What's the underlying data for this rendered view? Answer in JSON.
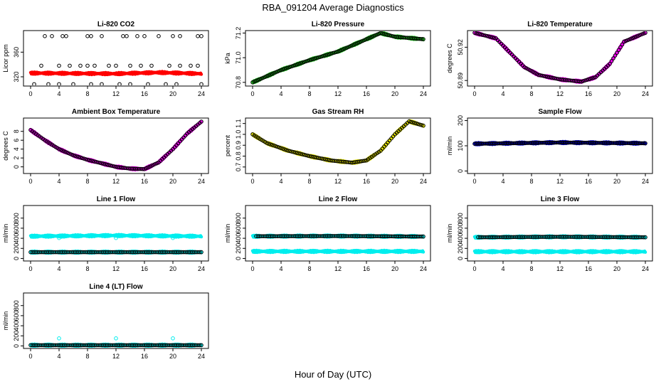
{
  "figure": {
    "title": "RBA_091204  Average Diagnostics",
    "xlabel": "Hour of Day (UTC)"
  },
  "chart_data": [
    {
      "type": "scatter",
      "title": "Li-820 CO2",
      "ylabel": "Licor ppm",
      "xlim": [
        0,
        24
      ],
      "xticks": [
        0,
        4,
        8,
        12,
        16,
        20,
        24
      ],
      "ylim": [
        305,
        395
      ],
      "yticks": [
        320,
        360
      ],
      "series": [
        {
          "name": "main",
          "color": "#ff0000",
          "marker": "filled",
          "x_range": [
            0,
            24
          ],
          "curve": [
            [
              0,
              326
            ],
            [
              12,
              325
            ],
            [
              18,
              327
            ],
            [
              24,
              325
            ]
          ]
        },
        {
          "name": "outliers-high",
          "color": "#000000",
          "marker": "open",
          "x": [
            2,
            3,
            4.5,
            5,
            8,
            8.5,
            10,
            13,
            13.5,
            15,
            16,
            18,
            20,
            21,
            23.5,
            24
          ],
          "y": [
            386,
            386,
            386,
            386,
            386,
            386,
            386,
            386,
            386,
            386,
            386,
            386,
            386,
            386,
            386,
            386
          ]
        },
        {
          "name": "outliers-mid",
          "color": "#000000",
          "marker": "open",
          "x": [
            1.5,
            4,
            5.5,
            7,
            8,
            9,
            11,
            12,
            14,
            15.5,
            17,
            19.5,
            21,
            22.5,
            23.5
          ],
          "y": [
            338,
            338,
            338,
            338,
            338,
            338,
            338,
            338,
            338,
            338,
            338,
            338,
            338,
            338,
            338
          ]
        },
        {
          "name": "outliers-low",
          "color": "#000000",
          "marker": "open",
          "x": [
            0.5,
            2.5,
            4,
            6,
            8.5,
            10,
            12.5,
            14,
            16.5,
            19,
            20.5,
            24
          ],
          "y": [
            308,
            308,
            308,
            308,
            308,
            308,
            308,
            308,
            308,
            308,
            308,
            308
          ]
        }
      ]
    },
    {
      "type": "scatter",
      "title": "Li-820 Pressure",
      "ylabel": "kPa",
      "xlim": [
        0,
        24
      ],
      "xticks": [
        0,
        4,
        8,
        12,
        16,
        20,
        24
      ],
      "ylim": [
        70.77,
        71.22
      ],
      "yticks": [
        70.8,
        71.0,
        71.2
      ],
      "ytick_labels": [
        "70.8",
        "71.0",
        "71.2"
      ],
      "series": [
        {
          "name": "main",
          "color": "#22cc22",
          "marker": "filled",
          "x_range": [
            0,
            24
          ],
          "curve": [
            [
              0,
              70.8
            ],
            [
              4,
              70.9
            ],
            [
              8,
              70.98
            ],
            [
              12,
              71.05
            ],
            [
              16,
              71.15
            ],
            [
              18,
              71.2
            ],
            [
              20,
              71.17
            ],
            [
              24,
              71.15
            ]
          ]
        },
        {
          "name": "hourly",
          "color": "#000000",
          "marker": "open",
          "x_range": [
            0,
            24
          ],
          "curve": [
            [
              0,
              70.8
            ],
            [
              4,
              70.9
            ],
            [
              8,
              70.98
            ],
            [
              12,
              71.05
            ],
            [
              16,
              71.15
            ],
            [
              18,
              71.2
            ],
            [
              20,
              71.17
            ],
            [
              24,
              71.15
            ]
          ]
        }
      ]
    },
    {
      "type": "scatter",
      "title": "Li-820 Temperature",
      "ylabel": "degrees C",
      "xlim": [
        0,
        24
      ],
      "xticks": [
        0,
        4,
        8,
        12,
        16,
        20,
        24
      ],
      "ylim": [
        50.885,
        50.935
      ],
      "yticks": [
        50.89,
        50.92
      ],
      "ytick_labels": [
        "50.89",
        "50.92"
      ],
      "series": [
        {
          "name": "main",
          "color": "#ee00ee",
          "marker": "filled",
          "x_range": [
            0,
            24
          ],
          "curve": [
            [
              0,
              50.933
            ],
            [
              3,
              50.928
            ],
            [
              5,
              50.915
            ],
            [
              7,
              50.902
            ],
            [
              9,
              50.895
            ],
            [
              12,
              50.891
            ],
            [
              15,
              50.889
            ],
            [
              17,
              50.893
            ],
            [
              19,
              50.905
            ],
            [
              21,
              50.925
            ],
            [
              24,
              50.933
            ]
          ]
        },
        {
          "name": "hourly",
          "color": "#000000",
          "marker": "open",
          "x_range": [
            0,
            24
          ],
          "curve": [
            [
              0,
              50.933
            ],
            [
              3,
              50.928
            ],
            [
              5,
              50.915
            ],
            [
              7,
              50.902
            ],
            [
              9,
              50.895
            ],
            [
              12,
              50.891
            ],
            [
              15,
              50.889
            ],
            [
              17,
              50.893
            ],
            [
              19,
              50.905
            ],
            [
              21,
              50.925
            ],
            [
              24,
              50.933
            ]
          ]
        }
      ]
    },
    {
      "type": "scatter",
      "title": "Ambient Box Temperature",
      "ylabel": "degrees C",
      "xlim": [
        0,
        24
      ],
      "xticks": [
        0,
        4,
        8,
        12,
        16,
        20,
        24
      ],
      "ylim": [
        -1.5,
        11
      ],
      "yticks": [
        0,
        2,
        4,
        6,
        8
      ],
      "series": [
        {
          "name": "main",
          "color": "#ee00ee",
          "marker": "filled",
          "x_range": [
            0,
            24
          ],
          "curve": [
            [
              0,
              8.3
            ],
            [
              2,
              6
            ],
            [
              4,
              4
            ],
            [
              6,
              2.6
            ],
            [
              8,
              1.6
            ],
            [
              10,
              0.8
            ],
            [
              12,
              0
            ],
            [
              14,
              -0.4
            ],
            [
              16,
              -0.5
            ],
            [
              18,
              1
            ],
            [
              20,
              4
            ],
            [
              22,
              7.5
            ],
            [
              24,
              10.2
            ]
          ]
        },
        {
          "name": "hourly",
          "color": "#000000",
          "marker": "open",
          "x_range": [
            0,
            24
          ],
          "curve": [
            [
              0,
              8.3
            ],
            [
              2,
              6
            ],
            [
              4,
              4
            ],
            [
              6,
              2.6
            ],
            [
              8,
              1.6
            ],
            [
              10,
              0.8
            ],
            [
              12,
              0
            ],
            [
              14,
              -0.4
            ],
            [
              16,
              -0.5
            ],
            [
              18,
              1
            ],
            [
              20,
              4
            ],
            [
              22,
              7.5
            ],
            [
              24,
              10.2
            ]
          ]
        }
      ]
    },
    {
      "type": "scatter",
      "title": "Gas Stream RH",
      "ylabel": "percent",
      "xlim": [
        0,
        24
      ],
      "xticks": [
        0,
        4,
        8,
        12,
        16,
        20,
        24
      ],
      "ylim": [
        0.64,
        1.15
      ],
      "yticks": [
        0.7,
        0.8,
        0.9,
        1.0,
        1.1
      ],
      "ytick_labels": [
        "0.7",
        "0.8",
        "0.9",
        "1.0",
        "1.1"
      ],
      "series": [
        {
          "name": "main",
          "color": "#eeee00",
          "marker": "filled",
          "x_range": [
            0,
            24
          ],
          "curve": [
            [
              0,
              1.0
            ],
            [
              2,
              0.92
            ],
            [
              5,
              0.85
            ],
            [
              8,
              0.8
            ],
            [
              11,
              0.76
            ],
            [
              14,
              0.74
            ],
            [
              16,
              0.76
            ],
            [
              18,
              0.85
            ],
            [
              20,
              1.0
            ],
            [
              22,
              1.12
            ],
            [
              24,
              1.08
            ]
          ]
        },
        {
          "name": "hourly",
          "color": "#000000",
          "marker": "open",
          "x_range": [
            0,
            24
          ],
          "curve": [
            [
              0,
              1.0
            ],
            [
              2,
              0.92
            ],
            [
              5,
              0.85
            ],
            [
              8,
              0.8
            ],
            [
              11,
              0.76
            ],
            [
              14,
              0.74
            ],
            [
              16,
              0.76
            ],
            [
              18,
              0.85
            ],
            [
              20,
              1.0
            ],
            [
              22,
              1.12
            ],
            [
              24,
              1.08
            ]
          ]
        }
      ]
    },
    {
      "type": "scatter",
      "title": "Sample Flow",
      "ylabel": "ml/min",
      "xlim": [
        0,
        24
      ],
      "xticks": [
        0,
        4,
        8,
        12,
        16,
        20,
        24
      ],
      "ylim": [
        -10,
        210
      ],
      "yticks": [
        0,
        100,
        200
      ],
      "series": [
        {
          "name": "main",
          "color": "#0000cc",
          "marker": "filled",
          "x_range": [
            0,
            24
          ],
          "curve": [
            [
              0,
              108
            ],
            [
              12,
              113
            ],
            [
              24,
              110
            ]
          ]
        },
        {
          "name": "hourly",
          "color": "#000000",
          "marker": "open",
          "x_range": [
            0,
            24
          ],
          "curve": [
            [
              0,
              108
            ],
            [
              12,
              113
            ],
            [
              24,
              110
            ]
          ]
        }
      ]
    },
    {
      "type": "scatter",
      "title": "Line 1 Flow",
      "ylabel": "ml/min",
      "xlim": [
        0,
        24
      ],
      "xticks": [
        0,
        4,
        8,
        12,
        16,
        20,
        24
      ],
      "ylim": [
        -50,
        1050
      ],
      "yticks": [
        0,
        200,
        400,
        600,
        800
      ],
      "series": [
        {
          "name": "upper",
          "color": "#00eeee",
          "marker": "filled",
          "x_range": [
            0,
            24
          ],
          "curve": [
            [
              0,
              440
            ],
            [
              12,
              455
            ],
            [
              24,
              440
            ]
          ]
        },
        {
          "name": "lower",
          "color": "#00eeee",
          "marker": "filled",
          "x_range": [
            0,
            24
          ],
          "curve": [
            [
              0,
              125
            ],
            [
              24,
              125
            ]
          ]
        },
        {
          "name": "hourly",
          "color": "#000000",
          "marker": "open",
          "x_range": [
            0,
            24
          ],
          "curve": [
            [
              0,
              125
            ],
            [
              24,
              125
            ]
          ]
        },
        {
          "name": "checks",
          "color": "#00eeee",
          "marker": "open",
          "x": [
            4,
            12,
            20
          ],
          "y": [
            405,
            405,
            405
          ]
        }
      ]
    },
    {
      "type": "scatter",
      "title": "Line 2 Flow",
      "ylabel": "ml/min",
      "xlim": [
        0,
        24
      ],
      "xticks": [
        0,
        4,
        8,
        12,
        16,
        20,
        24
      ],
      "ylim": [
        -50,
        1050
      ],
      "yticks": [
        0,
        200,
        400,
        600,
        800
      ],
      "series": [
        {
          "name": "upper",
          "color": "#00eeee",
          "marker": "filled",
          "x_range": [
            0,
            24
          ],
          "curve": [
            [
              0,
              440
            ],
            [
              12,
              445
            ],
            [
              24,
              435
            ]
          ]
        },
        {
          "name": "lower",
          "color": "#00eeee",
          "marker": "filled",
          "x_range": [
            0,
            24
          ],
          "curve": [
            [
              0,
              140
            ],
            [
              24,
              140
            ]
          ]
        },
        {
          "name": "hourly",
          "color": "#000000",
          "marker": "open",
          "x_range": [
            0.5,
            24
          ],
          "curve": [
            [
              0,
              440
            ],
            [
              12,
              445
            ],
            [
              24,
              435
            ]
          ]
        }
      ]
    },
    {
      "type": "scatter",
      "title": "Line 3 Flow",
      "ylabel": "ml/min",
      "xlim": [
        0,
        24
      ],
      "xticks": [
        0,
        4,
        8,
        12,
        16,
        20,
        24
      ],
      "ylim": [
        -50,
        1050
      ],
      "yticks": [
        0,
        200,
        400,
        600,
        800
      ],
      "series": [
        {
          "name": "upper",
          "color": "#00eeee",
          "marker": "filled",
          "x_range": [
            0,
            24
          ],
          "curve": [
            [
              0,
              420
            ],
            [
              12,
              430
            ],
            [
              24,
              420
            ]
          ]
        },
        {
          "name": "lower",
          "color": "#00eeee",
          "marker": "filled",
          "x_range": [
            0,
            24
          ],
          "curve": [
            [
              0,
              135
            ],
            [
              24,
              135
            ]
          ]
        },
        {
          "name": "hourly",
          "color": "#000000",
          "marker": "open",
          "x_range": [
            0.5,
            24
          ],
          "curve": [
            [
              0,
              420
            ],
            [
              12,
              430
            ],
            [
              24,
              420
            ]
          ]
        }
      ]
    },
    {
      "type": "scatter",
      "title": "Line 4 (LT) Flow",
      "ylabel": "ml/min",
      "xlim": [
        0,
        24
      ],
      "xticks": [
        0,
        4,
        8,
        12,
        16,
        20,
        24
      ],
      "ylim": [
        -50,
        1050
      ],
      "yticks": [
        0,
        200,
        400,
        600,
        800
      ],
      "series": [
        {
          "name": "lower",
          "color": "#00eeee",
          "marker": "filled",
          "x_range": [
            0,
            24
          ],
          "curve": [
            [
              0,
              15
            ],
            [
              24,
              15
            ]
          ]
        },
        {
          "name": "hourly",
          "color": "#000000",
          "marker": "open",
          "x_range": [
            0,
            24
          ],
          "curve": [
            [
              0,
              15
            ],
            [
              24,
              15
            ]
          ]
        },
        {
          "name": "checks",
          "color": "#00eeee",
          "marker": "open",
          "x": [
            4,
            12,
            20
          ],
          "y": [
            150,
            150,
            150
          ]
        }
      ]
    }
  ]
}
